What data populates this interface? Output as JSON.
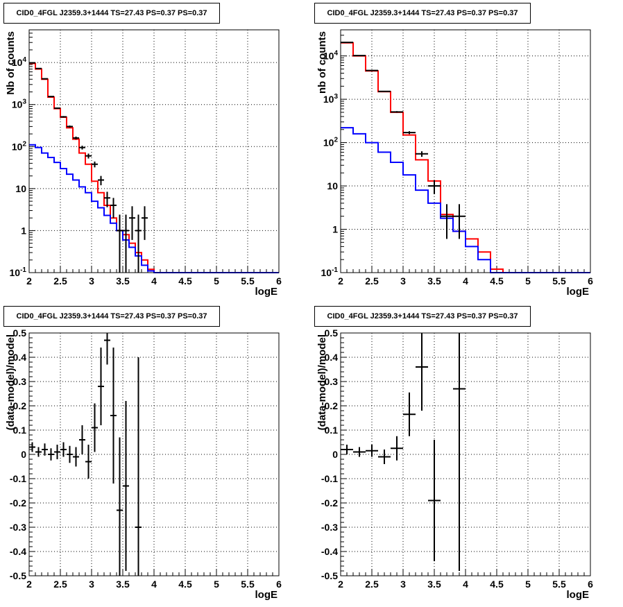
{
  "chart_data": [
    {
      "type": "line",
      "title": "CID0_4FGL J2359.3+1444 TS=27.43 PS=0.37 PS=0.37",
      "xlabel": "logE",
      "ylabel": "Nb of counts",
      "xlim": [
        2,
        6
      ],
      "ylim": [
        0.1,
        60000
      ],
      "yscale": "log",
      "grid": true,
      "x_tick_labels": [
        "2",
        "2.5",
        "3",
        "3.5",
        "4",
        "4.5",
        "5",
        "5.5",
        "6"
      ],
      "y_tick_labels": [
        "10^-1",
        "1",
        "10",
        "10^2",
        "10^3",
        "10^4"
      ],
      "bin_width": 0.1,
      "series": [
        {
          "color": "#ff0000",
          "kind": "step",
          "bin_edges_start": 2.0,
          "values": [
            9500,
            7000,
            4000,
            1500,
            800,
            500,
            280,
            150,
            70,
            38,
            15,
            8,
            4,
            2,
            1,
            0.8,
            0.5,
            0.3,
            0.2,
            0.12,
            0.1,
            0.1,
            0.1,
            0.1,
            0.1,
            0.1,
            0.1,
            0.1,
            0.1,
            0.1,
            0.1,
            0.1,
            0.1,
            0.1,
            0.1,
            0.1,
            0.1,
            0.1,
            0.1,
            0.1
          ]
        },
        {
          "color": "#0000ff",
          "kind": "step",
          "bin_edges_start": 2.0,
          "values": [
            110,
            95,
            70,
            55,
            42,
            30,
            22,
            16,
            11,
            8,
            5,
            3.5,
            2.3,
            1.5,
            1,
            0.6,
            0.4,
            0.25,
            0.15,
            0.11,
            0.1,
            0.1,
            0.1,
            0.1,
            0.1,
            0.1,
            0.1,
            0.1,
            0.1,
            0.1,
            0.1,
            0.1,
            0.1,
            0.1,
            0.1,
            0.1,
            0.1,
            0.1,
            0.1,
            0.1
          ]
        },
        {
          "color": "#000000",
          "kind": "errorbar",
          "x": [
            2.05,
            2.15,
            2.25,
            2.35,
            2.45,
            2.55,
            2.65,
            2.75,
            2.85,
            2.95,
            3.05,
            3.15,
            3.25,
            3.35,
            3.45,
            3.55,
            3.65,
            3.75,
            3.85
          ],
          "y": [
            9800,
            7200,
            4100,
            1550,
            820,
            510,
            300,
            160,
            95,
            60,
            38,
            16,
            6,
            4,
            1,
            1,
            2,
            1,
            2
          ],
          "yerr_low": [
            100,
            90,
            70,
            40,
            30,
            22,
            17,
            13,
            10,
            8,
            6,
            4,
            2.4,
            2,
            0.9,
            0.9,
            1.4,
            0.9,
            1.4
          ],
          "yerr_high": [
            100,
            90,
            70,
            40,
            30,
            22,
            17,
            13,
            10,
            8,
            6,
            4,
            2.4,
            2,
            1.4,
            1.4,
            1.8,
            1.4,
            1.8
          ]
        }
      ]
    },
    {
      "type": "line",
      "title": "CID0_4FGL J2359.3+1444 TS=27.43 PS=0.37 PS=0.37",
      "xlabel": "logE",
      "ylabel": "nb of counts",
      "xlim": [
        2,
        6
      ],
      "ylim": [
        0.1,
        40000
      ],
      "yscale": "log",
      "grid": true,
      "x_tick_labels": [
        "2",
        "2.5",
        "3",
        "3.5",
        "4",
        "4.5",
        "5",
        "5.5",
        "6"
      ],
      "y_tick_labels": [
        "10^-1",
        "1",
        "10",
        "10^2",
        "10^3",
        "10^4"
      ],
      "bin_width": 0.2,
      "series": [
        {
          "color": "#ff0000",
          "kind": "step",
          "bin_edges_start": 2.0,
          "values": [
            20000,
            10000,
            4500,
            1500,
            500,
            150,
            40,
            13,
            2.2,
            0.9,
            0.6,
            0.3,
            0.12,
            0.1,
            0.1,
            0.1,
            0.1,
            0.1,
            0.1,
            0.1
          ]
        },
        {
          "color": "#0000ff",
          "kind": "step",
          "bin_edges_start": 2.0,
          "values": [
            220,
            160,
            100,
            60,
            35,
            18,
            8,
            4,
            1.8,
            0.9,
            0.4,
            0.2,
            0.1,
            0.1,
            0.1,
            0.1,
            0.1,
            0.1,
            0.1,
            0.1
          ]
        },
        {
          "color": "#000000",
          "kind": "errorbar",
          "x": [
            2.1,
            2.3,
            2.5,
            2.7,
            2.9,
            3.1,
            3.3,
            3.5,
            3.7,
            3.9
          ],
          "y": [
            20500,
            10200,
            4600,
            1520,
            510,
            170,
            55,
            10,
            2,
            2
          ],
          "yerr_low": [
            150,
            100,
            70,
            40,
            22,
            13,
            8,
            3.5,
            1.4,
            1.4
          ],
          "yerr_high": [
            150,
            100,
            70,
            40,
            22,
            13,
            8,
            3.5,
            1.8,
            1.8
          ]
        }
      ]
    },
    {
      "type": "scatter",
      "title": "CID0_4FGL J2359.3+1444 TS=27.43 PS=0.37 PS=0.37",
      "xlabel": "logE",
      "ylabel": "(data-model)/model",
      "xlim": [
        2,
        6
      ],
      "ylim": [
        -0.5,
        0.5
      ],
      "grid": true,
      "x_tick_labels": [
        "2",
        "2.5",
        "3",
        "3.5",
        "4",
        "4.5",
        "5",
        "5.5",
        "6"
      ],
      "y_tick_labels": [
        "-0.5",
        "-0.4",
        "-0.3",
        "-0.2",
        "-0.1",
        "0",
        "0.1",
        "0.2",
        "0.3",
        "0.4",
        "0.5"
      ],
      "bin_width": 0.1,
      "series": [
        {
          "color": "#000000",
          "kind": "errorbar",
          "x": [
            2.05,
            2.15,
            2.25,
            2.35,
            2.45,
            2.55,
            2.65,
            2.75,
            2.85,
            2.95,
            3.05,
            3.15,
            3.25,
            3.35,
            3.45,
            3.55,
            3.75
          ],
          "y": [
            0.03,
            0.01,
            0.02,
            0.0,
            0.01,
            0.02,
            0.0,
            -0.01,
            0.06,
            -0.03,
            0.11,
            0.28,
            0.47,
            0.16,
            -0.23,
            -0.13,
            -0.3
          ],
          "yerr": [
            0.02,
            0.02,
            0.025,
            0.025,
            0.03,
            0.03,
            0.035,
            0.04,
            0.06,
            0.07,
            0.1,
            0.16,
            0.1,
            0.28,
            0.3,
            0.35,
            0.7
          ]
        }
      ]
    },
    {
      "type": "scatter",
      "title": "CID0_4FGL J2359.3+1444 TS=27.43 PS=0.37 PS=0.37",
      "xlabel": "logE",
      "ylabel": "(data-model)/model",
      "xlim": [
        2,
        6
      ],
      "ylim": [
        -0.5,
        0.5
      ],
      "grid": true,
      "x_tick_labels": [
        "2",
        "2.5",
        "3",
        "3.5",
        "4",
        "4.5",
        "5",
        "5.5",
        "6"
      ],
      "y_tick_labels": [
        "-0.5",
        "-0.4",
        "-0.3",
        "-0.2",
        "-0.1",
        "0",
        "0.1",
        "0.2",
        "0.3",
        "0.4",
        "0.5"
      ],
      "bin_width": 0.2,
      "series": [
        {
          "color": "#000000",
          "kind": "errorbar",
          "x": [
            2.1,
            2.3,
            2.5,
            2.7,
            2.9,
            3.1,
            3.3,
            3.5,
            3.9
          ],
          "y": [
            0.02,
            0.01,
            0.015,
            -0.01,
            0.025,
            0.165,
            0.36,
            -0.19,
            0.27
          ],
          "yerr": [
            0.02,
            0.02,
            0.025,
            0.03,
            0.05,
            0.09,
            0.18,
            0.25,
            0.75
          ]
        }
      ]
    }
  ]
}
